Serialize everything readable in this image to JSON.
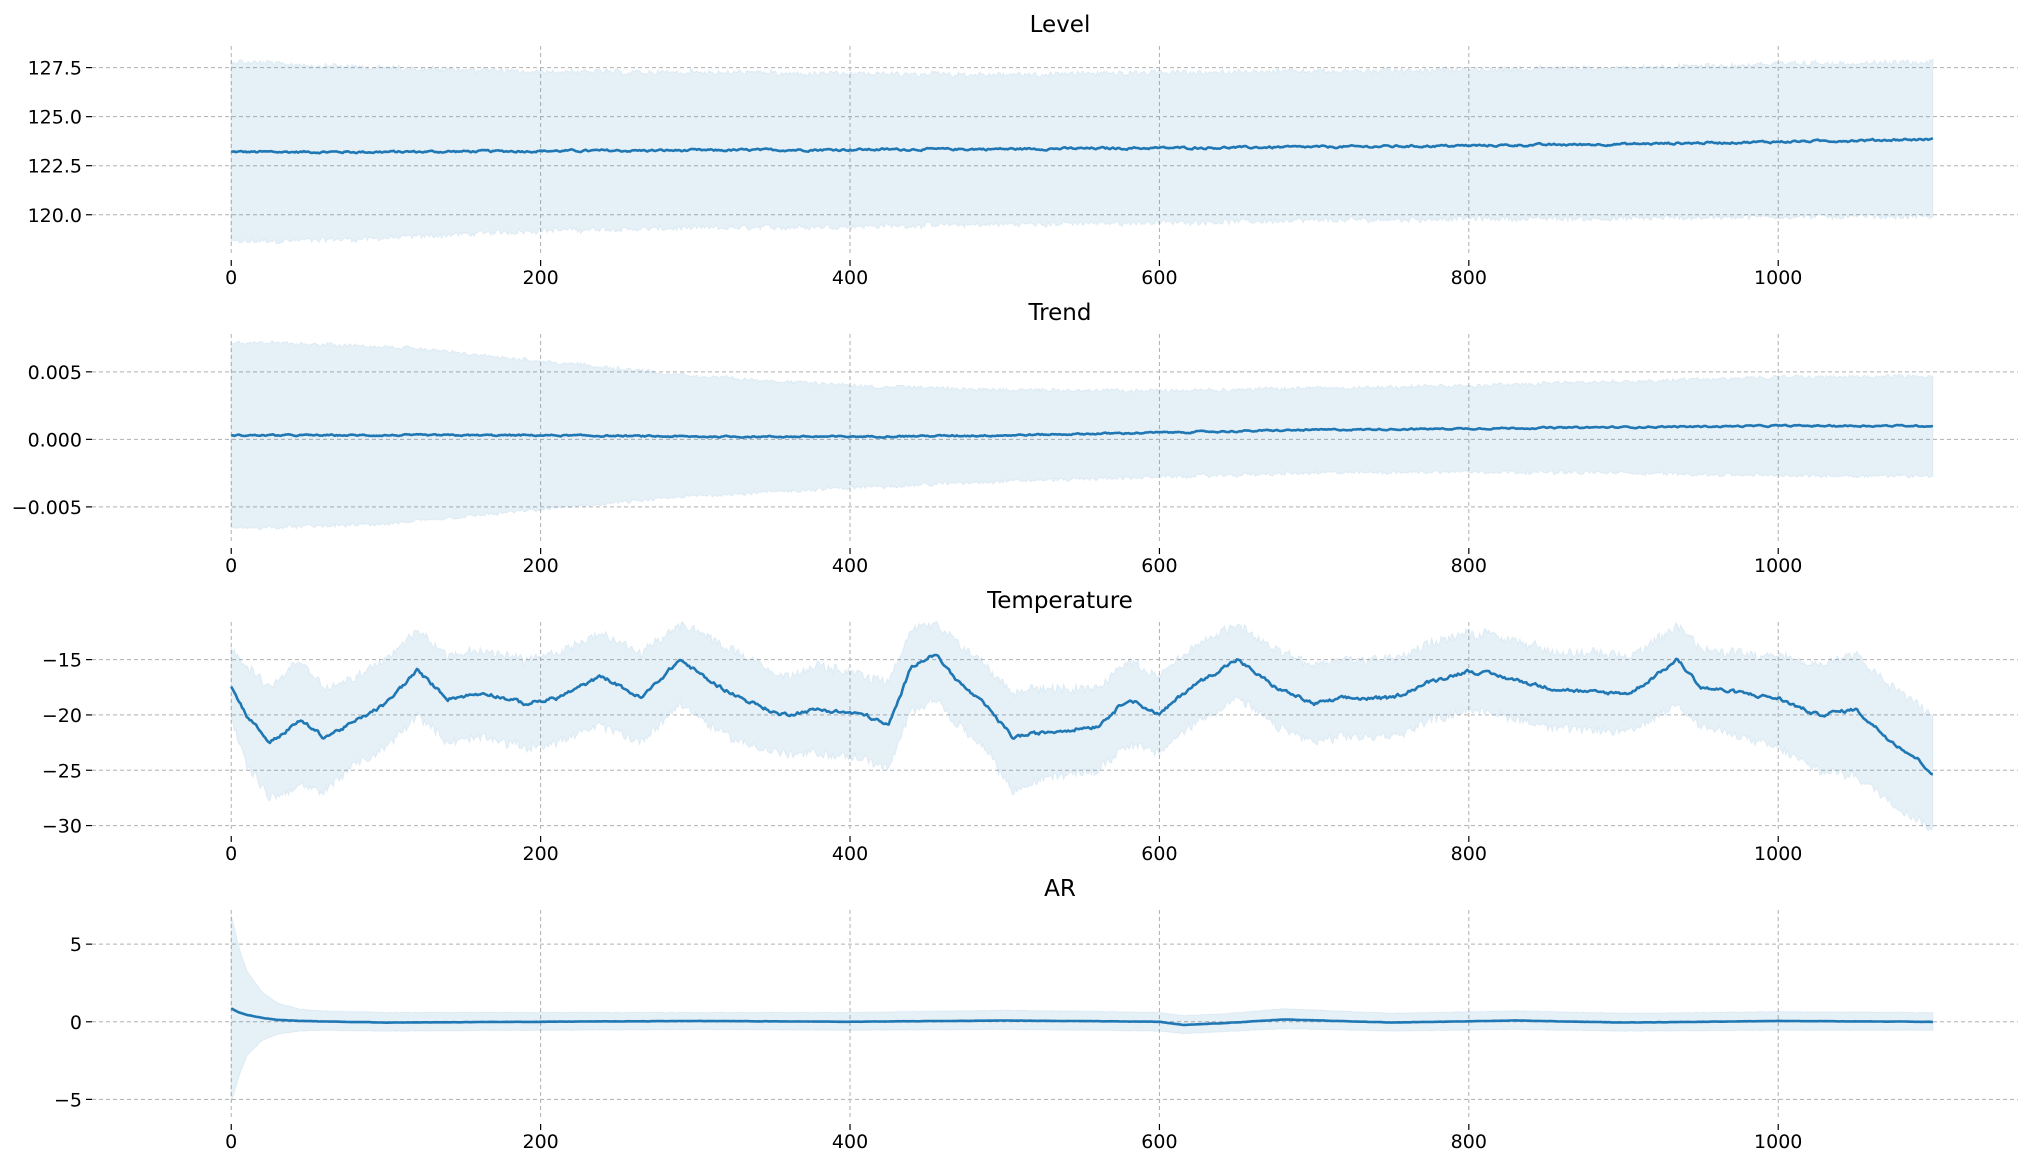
{
  "chart_data": [
    {
      "type": "line",
      "title": "Level",
      "xlim": [
        -90,
        1155
      ],
      "ylim": [
        118.0,
        128.6
      ],
      "xticks": [
        0,
        200,
        400,
        600,
        800,
        1000
      ],
      "xtick_labels": [
        "0",
        "200",
        "400",
        "600",
        "800",
        "1000"
      ],
      "yticks": [
        120.0,
        122.5,
        125.0,
        127.5
      ],
      "ytick_labels": [
        "120.0",
        "122.5",
        "125.0",
        "127.5"
      ],
      "grid": true,
      "series": [
        {
          "x": [
            0,
            100,
            200,
            300,
            400,
            500,
            600,
            700,
            800,
            900,
            1000,
            1100
          ],
          "mean": [
            123.2,
            123.2,
            123.25,
            123.28,
            123.32,
            123.35,
            123.4,
            123.45,
            123.52,
            123.6,
            123.72,
            123.85
          ],
          "lower": [
            118.6,
            118.8,
            119.2,
            119.3,
            119.4,
            119.5,
            119.6,
            119.7,
            119.8,
            119.8,
            119.9,
            119.9
          ],
          "upper": [
            127.8,
            127.5,
            127.3,
            127.25,
            127.2,
            127.15,
            127.25,
            127.3,
            127.4,
            127.5,
            127.7,
            127.8
          ],
          "noise": 0.18
        }
      ]
    },
    {
      "type": "line",
      "title": "Trend",
      "xlim": [
        -90,
        1155
      ],
      "ylim": [
        -0.0076,
        0.0078
      ],
      "xticks": [
        0,
        200,
        400,
        600,
        800,
        1000
      ],
      "xtick_labels": [
        "0",
        "200",
        "400",
        "600",
        "800",
        "1000"
      ],
      "yticks": [
        -0.005,
        0.0,
        0.005
      ],
      "ytick_labels": [
        "−0.005",
        "0.000",
        "0.005"
      ],
      "grid": true,
      "series": [
        {
          "x": [
            0,
            100,
            200,
            300,
            400,
            500,
            600,
            700,
            800,
            900,
            1000,
            1100
          ],
          "mean": [
            0.0003,
            0.0003,
            0.0003,
            0.0002,
            0.0002,
            0.0003,
            0.0005,
            0.0007,
            0.0008,
            0.0009,
            0.001,
            0.001
          ],
          "lower": [
            -0.0066,
            -0.0063,
            -0.0052,
            -0.0042,
            -0.0036,
            -0.0031,
            -0.0028,
            -0.0025,
            -0.0024,
            -0.0025,
            -0.0027,
            -0.0027
          ],
          "upper": [
            0.0072,
            0.0069,
            0.0058,
            0.0047,
            0.004,
            0.0037,
            0.0036,
            0.0038,
            0.004,
            0.0043,
            0.0046,
            0.0047
          ],
          "noise": 0.00018
        }
      ]
    },
    {
      "type": "line",
      "title": "Temperature",
      "xlim": [
        -90,
        1155
      ],
      "ylim": [
        -30.4,
        -11.6
      ],
      "xticks": [
        0,
        200,
        400,
        600,
        800,
        1000
      ],
      "xtick_labels": [
        "0",
        "200",
        "400",
        "600",
        "800",
        "1000"
      ],
      "yticks": [
        -30,
        -25,
        -20,
        -15
      ],
      "ytick_labels": [
        "−30",
        "−25",
        "−20",
        "−15"
      ],
      "grid": true,
      "series": [
        {
          "x": [
            0,
            10,
            25,
            45,
            60,
            75,
            100,
            120,
            140,
            165,
            190,
            210,
            240,
            265,
            290,
            310,
            330,
            355,
            380,
            410,
            425,
            440,
            455,
            470,
            490,
            505,
            530,
            560,
            580,
            600,
            620,
            650,
            675,
            700,
            720,
            750,
            775,
            800,
            820,
            850,
            880,
            905,
            935,
            950,
            975,
            1000,
            1025,
            1050,
            1070,
            1090,
            1100
          ],
          "mean": [
            -17.5,
            -20.0,
            -22.5,
            -20.5,
            -22.0,
            -21.0,
            -19.0,
            -16.0,
            -18.5,
            -18.0,
            -19.0,
            -18.5,
            -16.5,
            -18.5,
            -15.0,
            -17.0,
            -18.5,
            -20.0,
            -19.5,
            -20.0,
            -21.0,
            -15.5,
            -14.5,
            -17.0,
            -19.5,
            -22.0,
            -21.5,
            -21.0,
            -18.5,
            -20.0,
            -17.5,
            -15.0,
            -17.5,
            -19.0,
            -18.5,
            -18.5,
            -17.0,
            -16.0,
            -16.5,
            -17.5,
            -18.0,
            -18.0,
            -15.0,
            -17.5,
            -18.0,
            -18.5,
            -20.0,
            -19.5,
            -22.0,
            -24.0,
            -25.3
          ],
          "lower": [
            -20.5,
            -24.5,
            -27.5,
            -26.5,
            -27.0,
            -25.0,
            -23.0,
            -20.0,
            -22.5,
            -22.0,
            -23.0,
            -22.5,
            -21.0,
            -22.5,
            -19.0,
            -21.0,
            -22.5,
            -23.5,
            -23.5,
            -24.0,
            -25.0,
            -19.5,
            -18.5,
            -21.0,
            -23.5,
            -27.0,
            -25.5,
            -25.0,
            -22.5,
            -23.5,
            -21.0,
            -18.5,
            -21.0,
            -22.5,
            -22.0,
            -22.0,
            -20.5,
            -19.5,
            -20.0,
            -21.0,
            -21.5,
            -21.5,
            -19.0,
            -21.0,
            -22.0,
            -23.0,
            -25.0,
            -25.5,
            -27.5,
            -29.5,
            -30.2
          ],
          "upper": [
            -14.0,
            -15.5,
            -17.5,
            -15.0,
            -17.5,
            -17.0,
            -15.0,
            -12.5,
            -14.5,
            -14.0,
            -15.0,
            -14.5,
            -12.5,
            -14.5,
            -11.8,
            -13.0,
            -14.5,
            -16.5,
            -15.5,
            -16.5,
            -17.0,
            -12.0,
            -11.8,
            -13.5,
            -16.0,
            -18.0,
            -17.5,
            -17.5,
            -15.0,
            -16.5,
            -14.0,
            -11.8,
            -14.0,
            -15.5,
            -15.0,
            -15.0,
            -13.5,
            -12.5,
            -13.0,
            -14.0,
            -14.5,
            -14.5,
            -12.0,
            -14.0,
            -14.5,
            -14.5,
            -15.5,
            -14.5,
            -17.0,
            -19.0,
            -20.0
          ],
          "noise": 0.55
        }
      ]
    },
    {
      "type": "line",
      "title": "AR",
      "xlim": [
        -90,
        1155
      ],
      "ylim": [
        -6.2,
        7.2
      ],
      "xticks": [
        0,
        200,
        400,
        600,
        800,
        1000
      ],
      "xtick_labels": [
        "0",
        "200",
        "400",
        "600",
        "800",
        "1000"
      ],
      "yticks": [
        -5,
        0,
        5
      ],
      "ytick_labels": [
        "−5",
        "0",
        "5"
      ],
      "grid": true,
      "series": [
        {
          "x": [
            0,
            5,
            10,
            20,
            30,
            45,
            60,
            100,
            200,
            300,
            400,
            500,
            600,
            615,
            640,
            680,
            750,
            830,
            900,
            1000,
            1100
          ],
          "mean": [
            0.85,
            0.6,
            0.45,
            0.25,
            0.12,
            0.05,
            0.02,
            -0.05,
            0.0,
            0.05,
            0.0,
            0.08,
            0.0,
            -0.2,
            -0.1,
            0.15,
            -0.05,
            0.08,
            -0.05,
            0.05,
            0.0
          ],
          "lower": [
            -5.2,
            -3.5,
            -2.2,
            -1.2,
            -0.8,
            -0.6,
            -0.55,
            -0.6,
            -0.55,
            -0.5,
            -0.55,
            -0.5,
            -0.6,
            -0.75,
            -0.65,
            -0.45,
            -0.6,
            -0.5,
            -0.6,
            -0.55,
            -0.55
          ],
          "upper": [
            6.9,
            4.8,
            3.3,
            1.9,
            1.2,
            0.8,
            0.7,
            0.6,
            0.6,
            0.6,
            0.6,
            0.75,
            0.6,
            0.4,
            0.5,
            0.85,
            0.55,
            0.7,
            0.55,
            0.65,
            0.6
          ],
          "noise": 0.025
        }
      ]
    }
  ]
}
